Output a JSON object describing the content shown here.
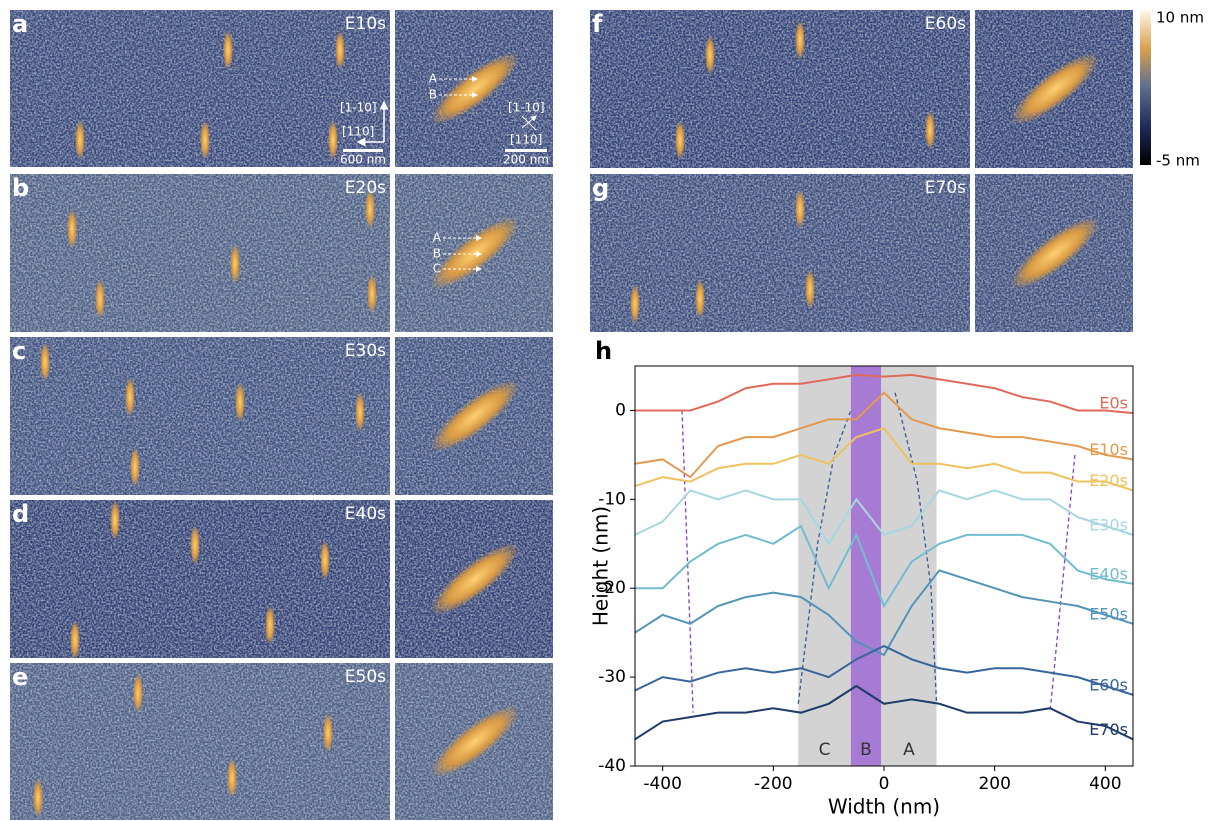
{
  "panels": [
    {
      "letter": "a",
      "label": "E10s"
    },
    {
      "letter": "b",
      "label": "E20s"
    },
    {
      "letter": "c",
      "label": "E30s"
    },
    {
      "letter": "d",
      "label": "E40s"
    },
    {
      "letter": "e",
      "label": "E50s"
    },
    {
      "letter": "f",
      "label": "E60s"
    },
    {
      "letter": "g",
      "label": "E70s"
    }
  ],
  "annotations": {
    "scale_wide": "600 nm",
    "scale_zoom": "200 nm",
    "dir_1": "[1-10]",
    "dir_2": "[110]",
    "zoom_a_marks": [
      "A",
      "B"
    ],
    "zoom_b_marks": [
      "A",
      "B",
      "C"
    ]
  },
  "colorbar": {
    "top": "10 nm",
    "bottom": "-5 nm"
  },
  "chart_data": {
    "type": "line",
    "panel": "h",
    "xlabel": "Width (nm)",
    "ylabel": "Height (nm)",
    "x": [
      -450,
      -400,
      -350,
      -300,
      -250,
      -200,
      -150,
      -100,
      -50,
      0,
      50,
      100,
      150,
      200,
      250,
      300,
      350,
      400,
      450
    ],
    "xlim": [
      -450,
      450
    ],
    "ylim": [
      -40,
      5
    ],
    "xticks": [
      -400,
      -200,
      0,
      200,
      400
    ],
    "yticks": [
      -40,
      -30,
      -20,
      -10,
      0
    ],
    "regions": [
      {
        "label": "C",
        "from": -155,
        "to": -60,
        "color": "#d3d3d3"
      },
      {
        "label": "B",
        "from": -60,
        "to": -5,
        "color": "#a77bd4"
      },
      {
        "label": "A",
        "from": -5,
        "to": 95,
        "color": "#d3d3d3"
      }
    ],
    "guides": [
      {
        "color": "#8a3cc8",
        "x": [
          -365,
          -345
        ],
        "y": [
          0,
          -34
        ]
      },
      {
        "color": "#8a3cc8",
        "x": [
          345,
          300
        ],
        "y": [
          -5,
          -34
        ]
      },
      {
        "color": "#2f5a9a",
        "x": [
          -155,
          -120,
          -90,
          -60
        ],
        "y": [
          -33,
          -15,
          -5,
          0
        ]
      },
      {
        "color": "#2f5a9a",
        "x": [
          20,
          60,
          85,
          95
        ],
        "y": [
          2,
          -8,
          -20,
          -33
        ]
      }
    ],
    "series": [
      {
        "name": "E0s",
        "color": "#e06a5a",
        "values": [
          0,
          0,
          0,
          1,
          2.5,
          3,
          3,
          3.5,
          4,
          3.8,
          4,
          3.5,
          3,
          2.5,
          1.5,
          1,
          0,
          0,
          -0.3
        ]
      },
      {
        "name": "E10s",
        "color": "#e39a4e",
        "values": [
          -6,
          -5.5,
          -7.5,
          -4,
          -3,
          -3,
          -2,
          -1,
          -1,
          2,
          -1,
          -2,
          -2.5,
          -3,
          -3,
          -3.5,
          -4,
          -5,
          -5.5
        ]
      },
      {
        "name": "E20s",
        "color": "#eec25e",
        "values": [
          -8.5,
          -7.5,
          -8,
          -6.5,
          -6,
          -6,
          -5,
          -6,
          -3,
          -2,
          -6,
          -6,
          -6.5,
          -6,
          -7,
          -7,
          -8,
          -8,
          -9
        ]
      },
      {
        "name": "E30s",
        "color": "#a6d6e0",
        "values": [
          -14,
          -12.5,
          -9,
          -10,
          -9,
          -10,
          -10,
          -15,
          -10,
          -14,
          -13,
          -9,
          -10,
          -9,
          -10,
          -10,
          -12,
          -13,
          -14
        ]
      },
      {
        "name": "E40s",
        "color": "#72bccf",
        "values": [
          -20,
          -20,
          -17,
          -15,
          -14,
          -15,
          -13,
          -20,
          -14,
          -22,
          -17,
          -15,
          -14,
          -14,
          -14,
          -15,
          -18,
          -19,
          -19.5
        ]
      },
      {
        "name": "E50s",
        "color": "#5494b6",
        "values": [
          -25,
          -23,
          -24,
          -22,
          -21,
          -20.5,
          -21,
          -23,
          -26,
          -27.5,
          -22,
          -18,
          -19,
          -20,
          -21,
          -21.5,
          -22,
          -23,
          -24
        ]
      },
      {
        "name": "E60s",
        "color": "#36669a",
        "values": [
          -31.5,
          -30,
          -30.5,
          -29.5,
          -29,
          -29.5,
          -29,
          -30,
          -28,
          -26.5,
          -28,
          -29,
          -29.5,
          -29,
          -29,
          -29.5,
          -30,
          -31,
          -32
        ]
      },
      {
        "name": "E70s",
        "color": "#1d3c68",
        "values": [
          -37,
          -35,
          -34.5,
          -34,
          -34,
          -33.5,
          -34,
          -33,
          -31,
          -33,
          -32.5,
          -33,
          -34,
          -34,
          -34,
          -33.5,
          -35,
          -35.5,
          -37
        ]
      }
    ]
  }
}
